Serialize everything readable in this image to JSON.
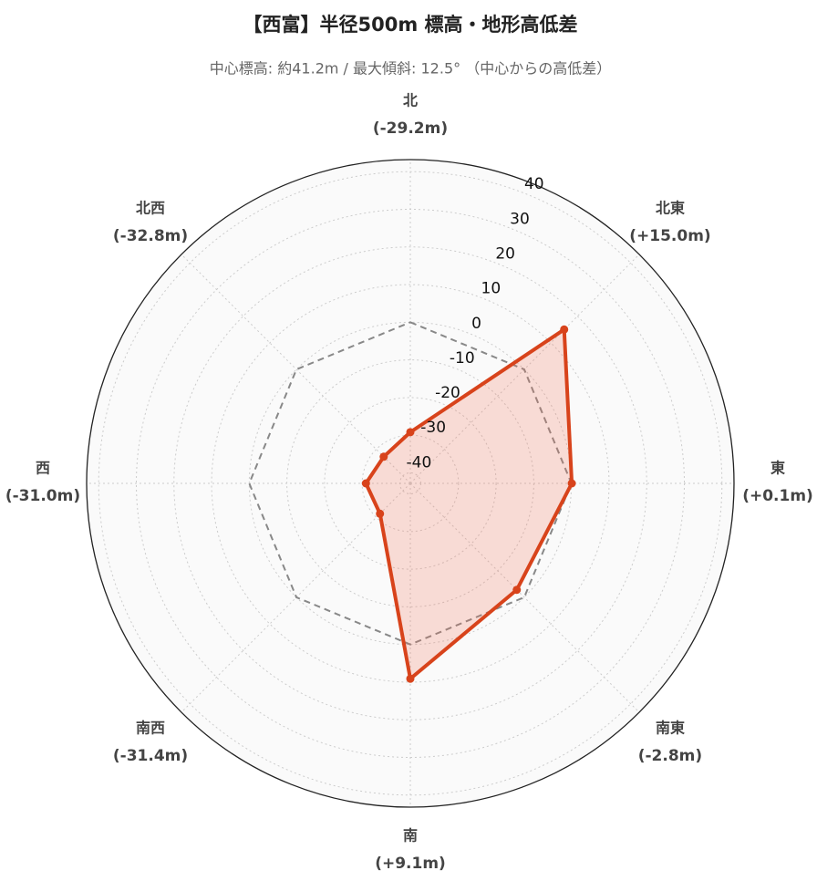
{
  "chart_data": {
    "type": "radar",
    "title": "【西富】半径500m 標高・地形高低差",
    "subtitle": "中心標高: 約41.2m / 最大傾斜: 12.5° （中心からの高低差）",
    "categories": [
      "北",
      "北東",
      "東",
      "南東",
      "南",
      "南西",
      "西",
      "北西"
    ],
    "series": [
      {
        "color": "#d8431b",
        "fill": "rgba(240,110,80,0.22)",
        "values": [
          -29.2,
          15.0,
          0.1,
          -2.8,
          9.1,
          -31.4,
          -31.0,
          -32.8
        ],
        "value_labels": [
          "(-29.2m)",
          "(+15.0m)",
          "(+0.1m)",
          "(-2.8m)",
          "(+9.1m)",
          "(-31.4m)",
          "(-31.0m)",
          "(-32.8m)"
        ]
      }
    ],
    "reference_line": {
      "value": 0,
      "color": "#888888"
    },
    "ylim": [
      -42.8,
      43.2
    ],
    "yticks": [
      -40,
      -30,
      -20,
      -10,
      0,
      10,
      20,
      30,
      40
    ],
    "grid": true
  }
}
